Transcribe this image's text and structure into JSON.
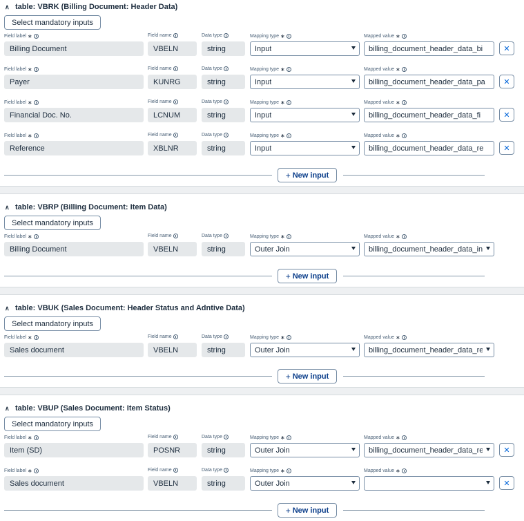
{
  "labels": {
    "field_label": "Field label",
    "field_name": "Field name",
    "data_type": "Data type",
    "mapping_type": "Mapping type",
    "mapped_value": "Mapped value",
    "select_mandatory": "Select mandatory inputs",
    "new_input": "New input"
  },
  "sections": [
    {
      "title": "table: VBRK (Billing Document: Header Data)",
      "rows": [
        {
          "field_label": "Billing Document",
          "field_name": "VBELN",
          "data_type": "string",
          "mapping_type": "Input",
          "mapped_value": "billing_document_header_data_bi",
          "mapped_is_dropdown": false,
          "removable": true
        },
        {
          "field_label": "Payer",
          "field_name": "KUNRG",
          "data_type": "string",
          "mapping_type": "Input",
          "mapped_value": "billing_document_header_data_pa",
          "mapped_is_dropdown": false,
          "removable": true
        },
        {
          "field_label": "Financial Doc. No.",
          "field_name": "LCNUM",
          "data_type": "string",
          "mapping_type": "Input",
          "mapped_value": "billing_document_header_data_fi",
          "mapped_is_dropdown": false,
          "removable": true
        },
        {
          "field_label": "Reference",
          "field_name": "XBLNR",
          "data_type": "string",
          "mapping_type": "Input",
          "mapped_value": "billing_document_header_data_re",
          "mapped_is_dropdown": false,
          "removable": true
        }
      ]
    },
    {
      "title": "table: VBRP (Billing Document: Item Data)",
      "rows": [
        {
          "field_label": "Billing Document",
          "field_name": "VBELN",
          "data_type": "string",
          "mapping_type": "Outer Join",
          "mapped_value": "billing_document_header_data_in",
          "mapped_is_dropdown": true,
          "removable": false
        }
      ]
    },
    {
      "title": "table: VBUK (Sales Document: Header Status and Adntive Data)",
      "rows": [
        {
          "field_label": "Sales document",
          "field_name": "VBELN",
          "data_type": "string",
          "mapping_type": "Outer Join",
          "mapped_value": "billing_document_header_data_re",
          "mapped_is_dropdown": true,
          "removable": false
        }
      ]
    },
    {
      "title": "table: VBUP (Sales Document: Item Status)",
      "rows": [
        {
          "field_label": "Item (SD)",
          "field_name": "POSNR",
          "data_type": "string",
          "mapping_type": "Outer Join",
          "mapped_value": "billing_document_header_data_re",
          "mapped_is_dropdown": true,
          "removable": true
        },
        {
          "field_label": "Sales document",
          "field_name": "VBELN",
          "data_type": "string",
          "mapping_type": "Outer Join",
          "mapped_value": "",
          "mapped_is_dropdown": true,
          "removable": true
        }
      ]
    }
  ]
}
